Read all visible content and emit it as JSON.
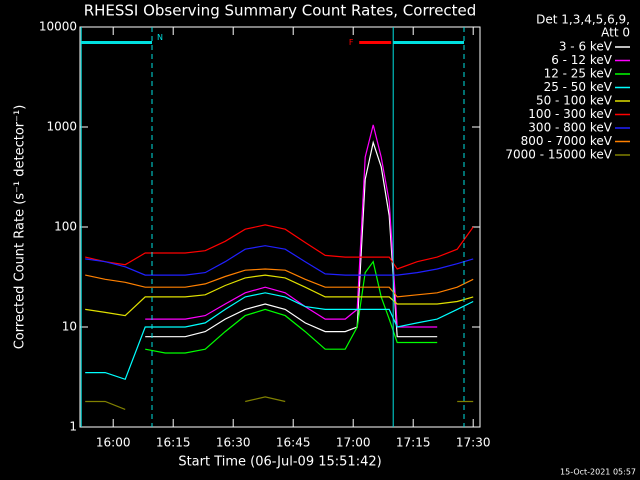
{
  "chart_data": {
    "type": "line",
    "title": "RHESSI Observing Summary Count Rates, Corrected",
    "x_label": "Start Time (06-Jul-09 15:51:42)",
    "y_label": "Corrected Count Rate (s⁻¹ detector⁻¹)",
    "legend_title": [
      "Det 1,3,4,5,6,9,",
      "Att 0"
    ],
    "footer": "15-Oct-2021 05:57",
    "log_y": true,
    "xlim": [
      951.7,
      1051.7
    ],
    "xticks": [
      {
        "value": 960,
        "label": "16:00"
      },
      {
        "value": 975,
        "label": "16:15"
      },
      {
        "value": 990,
        "label": "16:30"
      },
      {
        "value": 1005,
        "label": "16:45"
      },
      {
        "value": 1020,
        "label": "17:00"
      },
      {
        "value": 1035,
        "label": "17:15"
      },
      {
        "value": 1050,
        "label": "17:30"
      }
    ],
    "ylim": [
      1,
      10000
    ],
    "yticks": [
      1,
      10,
      100,
      1000,
      10000
    ],
    "x": [
      953,
      958,
      963,
      968,
      973,
      978,
      983,
      988,
      993,
      998,
      1003,
      1008,
      1013,
      1018,
      1021,
      1023,
      1025,
      1027,
      1029,
      1031,
      1036,
      1041,
      1046,
      1050
    ],
    "series": [
      {
        "name": "3 - 6 keV",
        "color": "#ffffff",
        "values": [
          null,
          null,
          null,
          8,
          8,
          8,
          9,
          12,
          15,
          17,
          15,
          11,
          9,
          9,
          10,
          300,
          700,
          400,
          130,
          8,
          8,
          8,
          null,
          null
        ]
      },
      {
        "name": "6 - 12 keV",
        "color": "#ff00ff",
        "values": [
          null,
          null,
          null,
          12,
          12,
          12,
          13,
          17,
          22,
          25,
          22,
          16,
          12,
          12,
          15,
          500,
          1050,
          500,
          180,
          10,
          10,
          10,
          null,
          null
        ]
      },
      {
        "name": "12 - 25 keV",
        "color": "#00ff00",
        "values": [
          null,
          null,
          null,
          6,
          5.5,
          5.5,
          6,
          9,
          13,
          15,
          13,
          9,
          6,
          6,
          10,
          35,
          45,
          20,
          12,
          7,
          7,
          7,
          null,
          null
        ]
      },
      {
        "name": "25 - 50 keV",
        "color": "#00ffff",
        "values": [
          3.5,
          3.5,
          3,
          10,
          10,
          10,
          11,
          15,
          20,
          22,
          20,
          16,
          15,
          15,
          15,
          15,
          15,
          15,
          15,
          10,
          11,
          12,
          15,
          18
        ]
      },
      {
        "name": "50 - 100 keV",
        "color": "#e0e000",
        "values": [
          15,
          14,
          13,
          20,
          20,
          20,
          21,
          26,
          31,
          33,
          31,
          25,
          20,
          20,
          20,
          20,
          20,
          20,
          20,
          17,
          17,
          17,
          18,
          20
        ]
      },
      {
        "name": "100 - 300 keV",
        "color": "#ff0000",
        "values": [
          50,
          45,
          42,
          55,
          55,
          55,
          58,
          72,
          95,
          105,
          95,
          70,
          52,
          50,
          50,
          50,
          50,
          50,
          50,
          38,
          45,
          50,
          60,
          100
        ]
      },
      {
        "name": "300 - 800 keV",
        "color": "#2020ff",
        "values": [
          48,
          45,
          40,
          33,
          33,
          33,
          35,
          45,
          60,
          65,
          60,
          45,
          34,
          33,
          33,
          33,
          33,
          33,
          33,
          33,
          35,
          38,
          43,
          48
        ]
      },
      {
        "name": "800 - 7000 keV",
        "color": "#ff8000",
        "values": [
          33,
          30,
          28,
          25,
          25,
          25,
          27,
          32,
          37,
          38,
          37,
          30,
          25,
          25,
          25,
          25,
          25,
          25,
          25,
          20,
          21,
          22,
          25,
          30
        ]
      },
      {
        "name": "7000 - 15000 keV",
        "color": "#808000",
        "values": [
          1.8,
          1.8,
          1.5,
          null,
          null,
          null,
          null,
          null,
          1.8,
          2,
          1.8,
          null,
          null,
          null,
          null,
          null,
          null,
          null,
          null,
          null,
          null,
          null,
          1.8,
          1.8
        ]
      }
    ],
    "vlines": [
      {
        "x": 952,
        "dash": false
      },
      {
        "x": 969.7,
        "dash": true
      },
      {
        "x": 1030,
        "dash": false
      },
      {
        "x": 1047.7,
        "dash": true
      }
    ],
    "intervals": [
      {
        "label": "N",
        "start": 952,
        "end": 969.7,
        "y": 7000,
        "color": "#00e0e0"
      },
      {
        "start": 1030,
        "end": 1047.7,
        "y": 7000,
        "color": "#00e0e0"
      },
      {
        "label": "F",
        "start": 1021.5,
        "end": 1029.5,
        "y": 7000,
        "color": "#ff0000"
      }
    ],
    "vline_color": "#00e0e0"
  }
}
